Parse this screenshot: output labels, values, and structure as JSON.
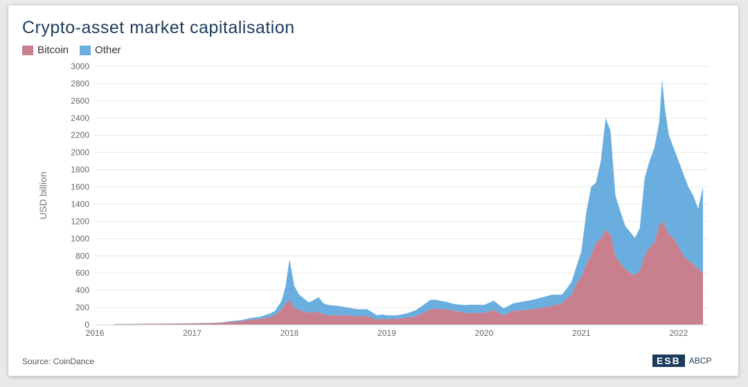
{
  "title": "Crypto-asset market capitalisation",
  "source": "Source: CoinDance",
  "logo": {
    "text": "ESB",
    "tagline": "ABCP"
  },
  "colors": {
    "bitcoin": "#c9808e",
    "other": "#6aaee0",
    "title": "#1c3a5c",
    "grid": "#e6e6e6"
  },
  "chart_data": {
    "type": "area",
    "stacked": true,
    "ylabel": "USD billion",
    "ylim": [
      0,
      3000
    ],
    "yticks": [
      0,
      200,
      400,
      600,
      800,
      1000,
      1200,
      1400,
      1600,
      1800,
      2000,
      2200,
      2400,
      2600,
      2800,
      3000
    ],
    "xlim": [
      2016.0,
      2022.3
    ],
    "xticks": [
      {
        "v": 2016,
        "label": "2016"
      },
      {
        "v": 2017,
        "label": "2017"
      },
      {
        "v": 2018,
        "label": "2018"
      },
      {
        "v": 2019,
        "label": "2019"
      },
      {
        "v": 2020,
        "label": "2020"
      },
      {
        "v": 2021,
        "label": "2021"
      },
      {
        "v": 2022,
        "label": "2022"
      }
    ],
    "grid": true,
    "legend_position": "top-left",
    "x": [
      2016.2,
      2016.5,
      2016.8,
      2017.0,
      2017.2,
      2017.3,
      2017.4,
      2017.5,
      2017.6,
      2017.7,
      2017.8,
      2017.85,
      2017.92,
      2017.96,
      2018.0,
      2018.05,
      2018.1,
      2018.2,
      2018.3,
      2018.35,
      2018.4,
      2018.5,
      2018.6,
      2018.7,
      2018.8,
      2018.9,
      2018.95,
      2019.0,
      2019.1,
      2019.2,
      2019.3,
      2019.4,
      2019.45,
      2019.5,
      2019.6,
      2019.7,
      2019.8,
      2019.9,
      2020.0,
      2020.1,
      2020.2,
      2020.3,
      2020.4,
      2020.5,
      2020.6,
      2020.7,
      2020.8,
      2020.85,
      2020.9,
      2020.95,
      2021.0,
      2021.05,
      2021.1,
      2021.15,
      2021.2,
      2021.25,
      2021.3,
      2021.35,
      2021.4,
      2021.45,
      2021.5,
      2021.55,
      2021.6,
      2021.65,
      2021.7,
      2021.75,
      2021.8,
      2021.83,
      2021.86,
      2021.9,
      2021.95,
      2022.0,
      2022.05,
      2022.1,
      2022.15,
      2022.2,
      2022.25
    ],
    "series": [
      {
        "name": "Bitcoin",
        "values": [
          8,
          10,
          12,
          15,
          18,
          22,
          35,
          42,
          60,
          70,
          90,
          110,
          180,
          250,
          290,
          200,
          170,
          140,
          150,
          120,
          110,
          110,
          110,
          100,
          100,
          60,
          70,
          65,
          70,
          80,
          100,
          150,
          180,
          190,
          180,
          160,
          140,
          135,
          140,
          170,
          110,
          160,
          170,
          180,
          200,
          220,
          250,
          300,
          350,
          480,
          550,
          700,
          800,
          950,
          1000,
          1100,
          1050,
          800,
          720,
          650,
          600,
          580,
          620,
          800,
          900,
          950,
          1150,
          1200,
          1150,
          1050,
          1000,
          900,
          800,
          750,
          700,
          650,
          600
        ]
      },
      {
        "name": "Other",
        "values": [
          2,
          3,
          3,
          4,
          5,
          6,
          8,
          12,
          18,
          25,
          40,
          50,
          100,
          200,
          470,
          250,
          180,
          120,
          170,
          130,
          120,
          110,
          90,
          80,
          80,
          50,
          50,
          45,
          40,
          50,
          70,
          100,
          110,
          100,
          90,
          80,
          90,
          100,
          90,
          110,
          80,
          90,
          100,
          110,
          120,
          130,
          100,
          120,
          150,
          200,
          300,
          600,
          800,
          700,
          900,
          1300,
          1200,
          700,
          600,
          500,
          480,
          430,
          500,
          900,
          1000,
          1100,
          1200,
          1650,
          1350,
          1150,
          1050,
          1000,
          950,
          850,
          800,
          700,
          1000
        ]
      }
    ]
  }
}
